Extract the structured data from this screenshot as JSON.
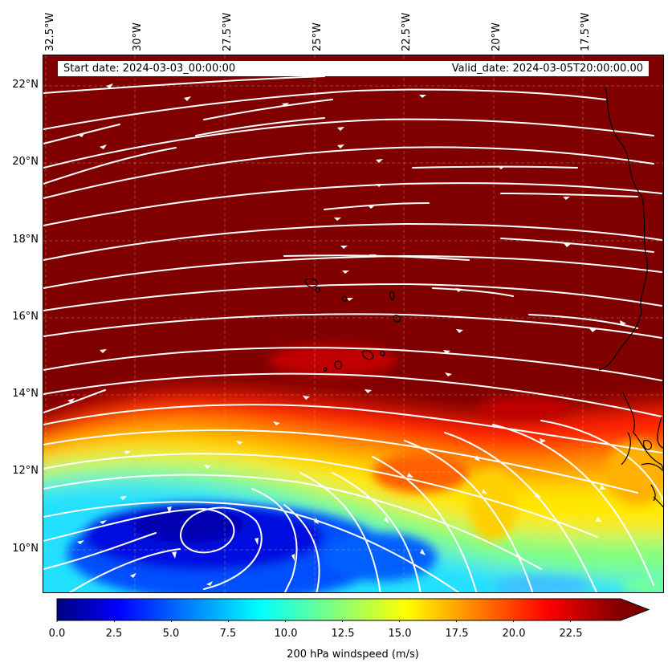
{
  "header": {
    "start_text": "Start date: 2024-03-03_00:00:00",
    "valid_text": "Valid_date: 2024-03-05T20:00:00.00"
  },
  "axes": {
    "longitude_labels": [
      "32.5°W",
      "30°W",
      "27.5°W",
      "25°W",
      "22.5°W",
      "20°W",
      "17.5°W"
    ],
    "latitude_labels": [
      "22°N",
      "20°N",
      "18°N",
      "16°N",
      "14°N",
      "12°N",
      "10°N"
    ]
  },
  "chart_data": {
    "type": "heatmap",
    "title": "",
    "xlabel": "",
    "ylabel": "",
    "x_ticks": [
      -32.5,
      -30,
      -27.5,
      -25,
      -22.5,
      -20,
      -17.5
    ],
    "y_ticks": [
      22,
      20,
      18,
      16,
      14,
      12,
      10
    ],
    "xlim": [
      -32.5,
      -15
    ],
    "ylim": [
      8.8,
      22.8
    ],
    "grid": true,
    "field": "200 hPa windspeed",
    "colormap": "jet",
    "colorbar": {
      "label": "200 hPa windspeed (m/s)",
      "ticks": [
        0.0,
        2.5,
        5.0,
        7.5,
        10.0,
        12.5,
        15.0,
        17.5,
        20.0,
        22.5
      ],
      "tick_labels": [
        "0.0",
        "2.5",
        "5.0",
        "7.5",
        "10.0",
        "12.5",
        "15.0",
        "17.5",
        "20.0",
        "22.5"
      ],
      "range": [
        0,
        25
      ],
      "extend": "max"
    },
    "overlay": "streamlines",
    "features": [
      "coastline",
      "cape-verde-islands"
    ]
  },
  "colors": {
    "saturated": "#800000",
    "streamline": "#ffffff",
    "coastline": "#000000"
  }
}
